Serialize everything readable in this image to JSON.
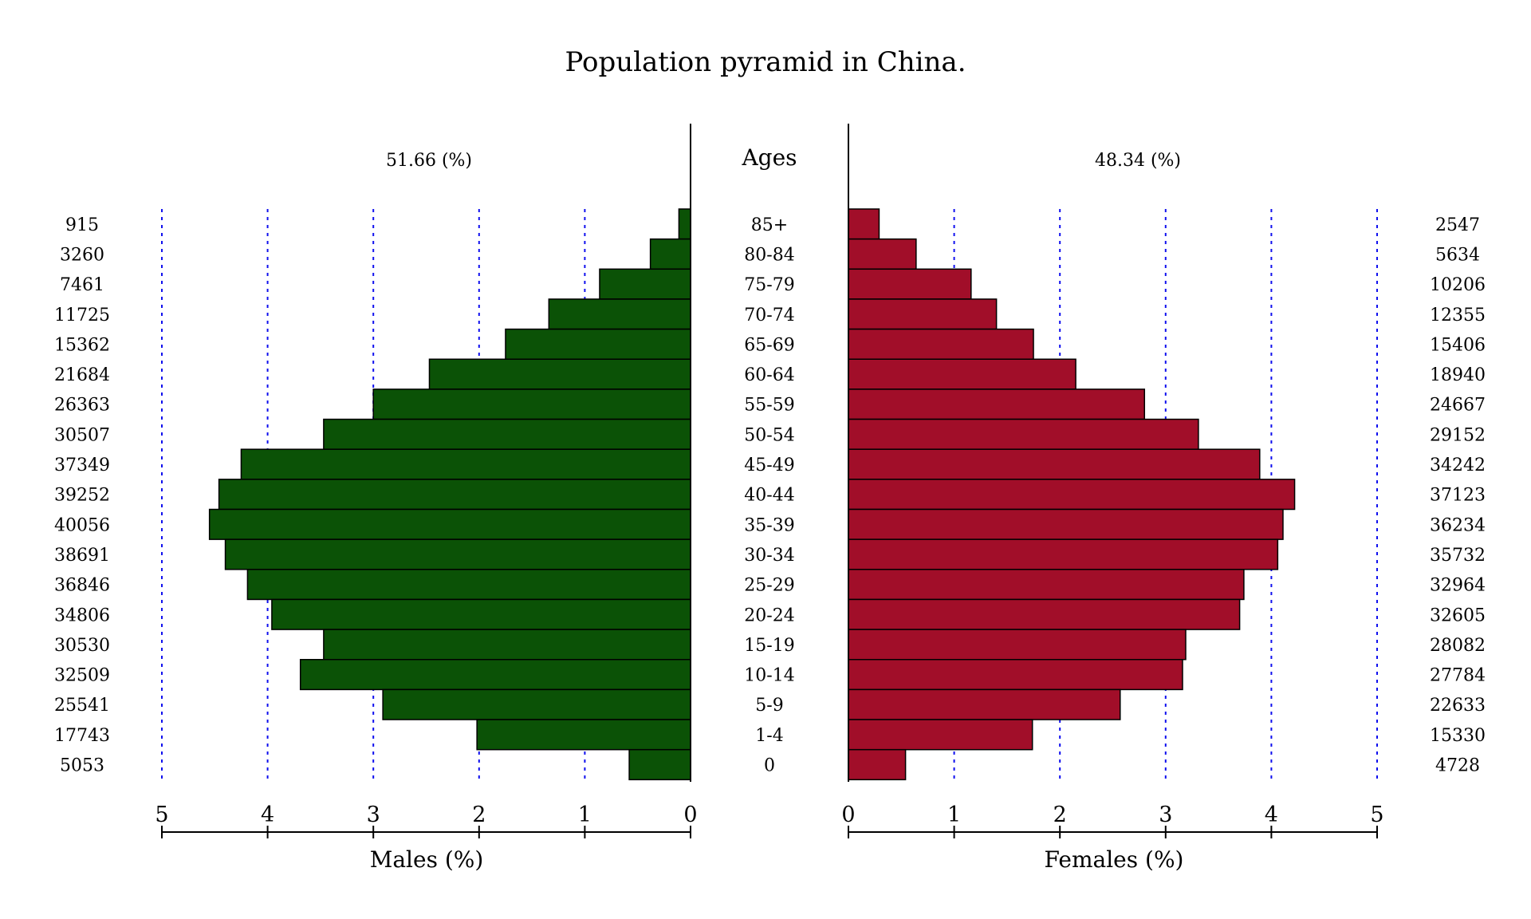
{
  "chart_data": {
    "type": "bar",
    "title": "Population pyramid in China.",
    "ages_label": "Ages",
    "male_share": "51.66 (%)",
    "female_share": "48.34 (%)",
    "xlabel_left": "Males (%)",
    "xlabel_right": "Females (%)",
    "xlim": [
      0,
      5
    ],
    "ticks": [
      0,
      1,
      2,
      3,
      4,
      5
    ],
    "grid": true,
    "colors": {
      "male": "#0b5206",
      "female": "#a10e29",
      "grid": "#1010ee"
    },
    "categories": [
      "85+",
      "80-84",
      "75-79",
      "70-74",
      "65-69",
      "60-64",
      "55-59",
      "50-54",
      "45-49",
      "40-44",
      "35-39",
      "30-34",
      "25-29",
      "20-24",
      "15-19",
      "10-14",
      "5-9",
      "1-4",
      "0"
    ],
    "series": [
      {
        "name": "Males (%)",
        "values": [
          0.11,
          0.38,
          0.86,
          1.34,
          1.75,
          2.47,
          3.0,
          3.47,
          4.25,
          4.46,
          4.55,
          4.4,
          4.19,
          3.96,
          3.47,
          3.69,
          2.91,
          2.02,
          0.58
        ],
        "counts": [
          "915",
          "3260",
          "7461",
          "11725",
          "15362",
          "21684",
          "26363",
          "30507",
          "37349",
          "39252",
          "40056",
          "38691",
          "36846",
          "34806",
          "30530",
          "32509",
          "25541",
          "17743",
          "5053"
        ]
      },
      {
        "name": "Females (%)",
        "values": [
          0.29,
          0.64,
          1.16,
          1.4,
          1.75,
          2.15,
          2.8,
          3.31,
          3.89,
          4.22,
          4.11,
          4.06,
          3.74,
          3.7,
          3.19,
          3.16,
          2.57,
          1.74,
          0.54
        ],
        "counts": [
          "2547",
          "5634",
          "10206",
          "12355",
          "15406",
          "18940",
          "24667",
          "29152",
          "34242",
          "37123",
          "36234",
          "35732",
          "32964",
          "32605",
          "28082",
          "27784",
          "22633",
          "15330",
          "4728"
        ]
      }
    ]
  }
}
